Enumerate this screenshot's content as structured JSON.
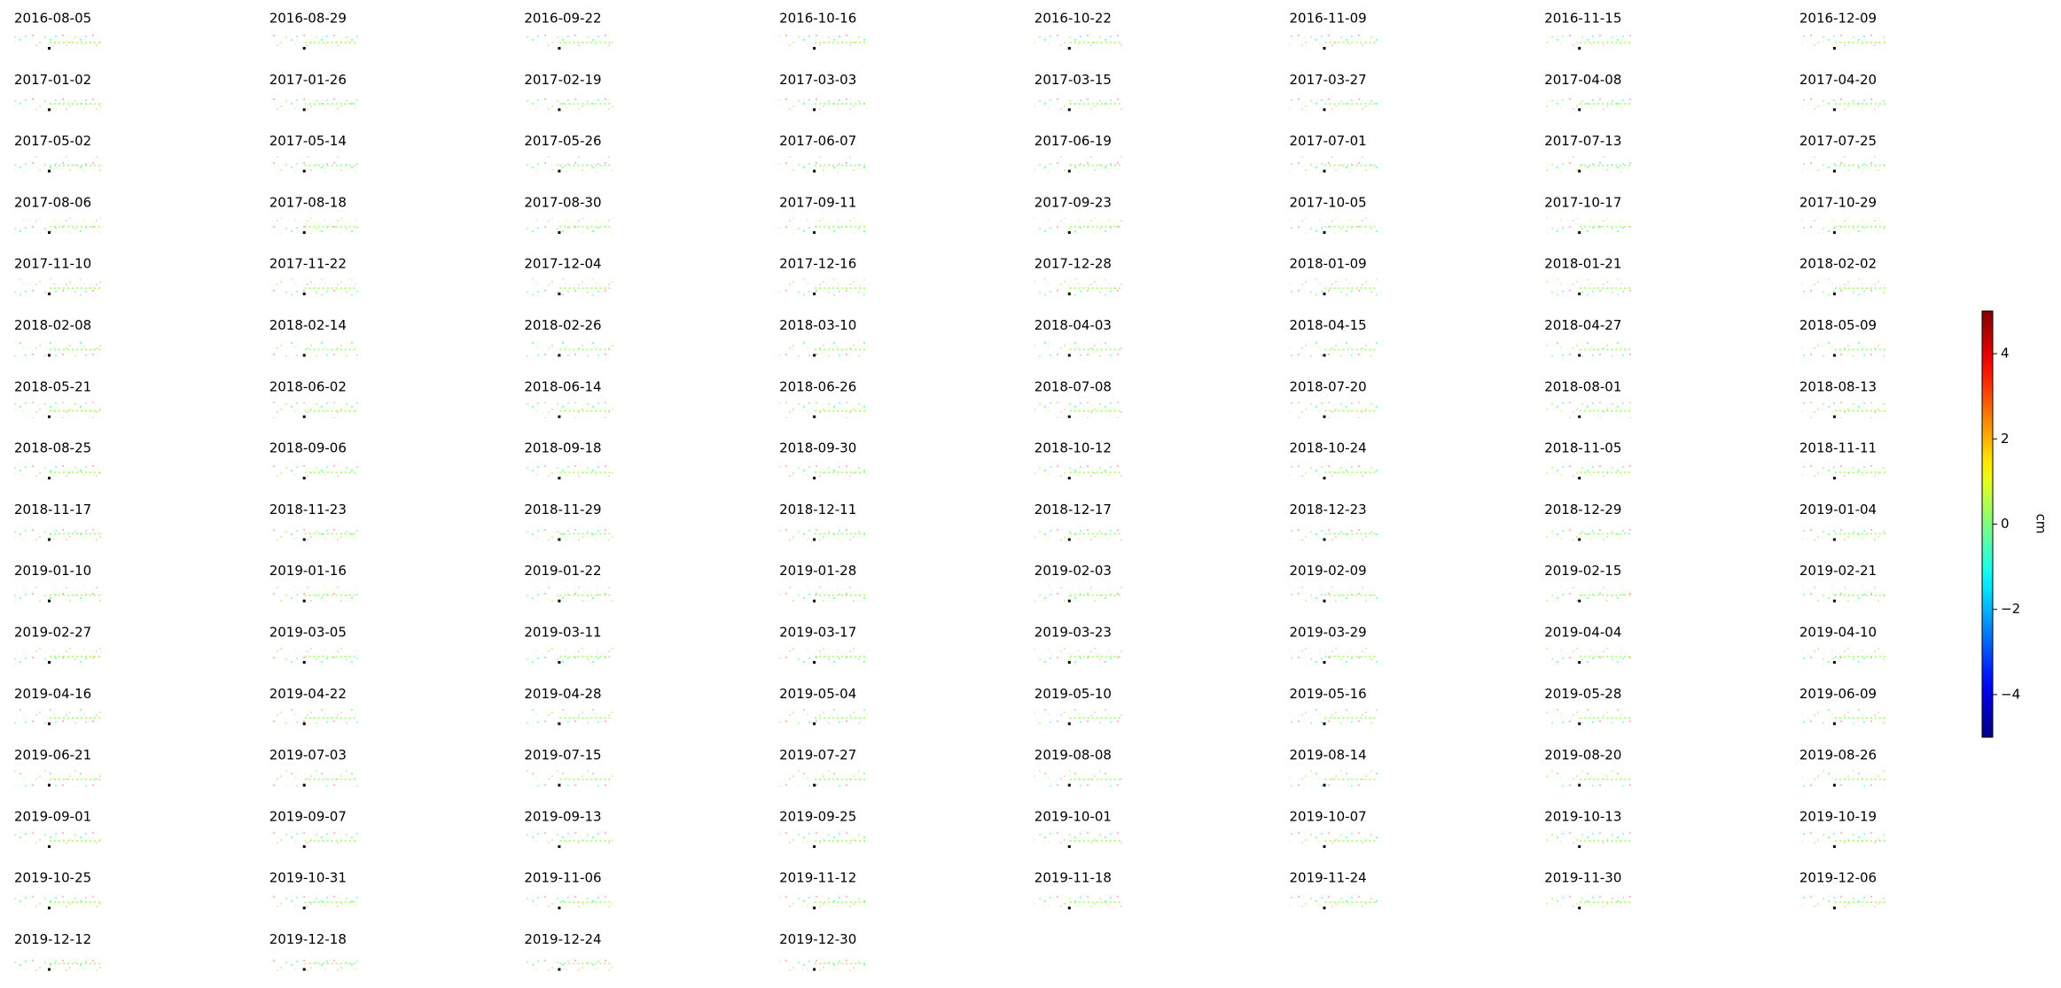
{
  "panels": [
    "2016-08-05",
    "2016-08-29",
    "2016-09-22",
    "2016-10-16",
    "2016-10-22",
    "2016-11-09",
    "2016-11-15",
    "2016-12-09",
    "2017-01-02",
    "2017-01-26",
    "2017-02-19",
    "2017-03-03",
    "2017-03-15",
    "2017-03-27",
    "2017-04-08",
    "2017-04-20",
    "2017-05-02",
    "2017-05-14",
    "2017-05-26",
    "2017-06-07",
    "2017-06-19",
    "2017-07-01",
    "2017-07-13",
    "2017-07-25",
    "2017-08-06",
    "2017-08-18",
    "2017-08-30",
    "2017-09-11",
    "2017-09-23",
    "2017-10-05",
    "2017-10-17",
    "2017-10-29",
    "2017-11-10",
    "2017-11-22",
    "2017-12-04",
    "2017-12-16",
    "2017-12-28",
    "2018-01-09",
    "2018-01-21",
    "2018-02-02",
    "2018-02-08",
    "2018-02-14",
    "2018-02-26",
    "2018-03-10",
    "2018-04-03",
    "2018-04-15",
    "2018-04-27",
    "2018-05-09",
    "2018-05-21",
    "2018-06-02",
    "2018-06-14",
    "2018-06-26",
    "2018-07-08",
    "2018-07-20",
    "2018-08-01",
    "2018-08-13",
    "2018-08-25",
    "2018-09-06",
    "2018-09-18",
    "2018-09-30",
    "2018-10-12",
    "2018-10-24",
    "2018-11-05",
    "2018-11-11",
    "2018-11-17",
    "2018-11-23",
    "2018-11-29",
    "2018-12-11",
    "2018-12-17",
    "2018-12-23",
    "2018-12-29",
    "2019-01-04",
    "2019-01-10",
    "2019-01-16",
    "2019-01-22",
    "2019-01-28",
    "2019-02-03",
    "2019-02-09",
    "2019-02-15",
    "2019-02-21",
    "2019-02-27",
    "2019-03-05",
    "2019-03-11",
    "2019-03-17",
    "2019-03-23",
    "2019-03-29",
    "2019-04-04",
    "2019-04-10",
    "2019-04-16",
    "2019-04-22",
    "2019-04-28",
    "2019-05-04",
    "2019-05-10",
    "2019-05-16",
    "2019-05-28",
    "2019-06-09",
    "2019-06-21",
    "2019-07-03",
    "2019-07-15",
    "2019-07-27",
    "2019-08-08",
    "2019-08-14",
    "2019-08-20",
    "2019-08-26",
    "2019-09-01",
    "2019-09-07",
    "2019-09-13",
    "2019-09-25",
    "2019-10-01",
    "2019-10-07",
    "2019-10-13",
    "2019-10-19",
    "2019-10-25",
    "2019-10-31",
    "2019-11-06",
    "2019-11-12",
    "2019-11-18",
    "2019-11-24",
    "2019-11-30",
    "2019-12-06",
    "2019-12-12",
    "2019-12-18",
    "2019-12-24",
    "2019-12-30"
  ],
  "colorbar": {
    "label": "cm",
    "colormap": "jet",
    "lim": [
      -5,
      5
    ],
    "ticks": [
      {
        "value": -4,
        "label": "−4"
      },
      {
        "value": -2,
        "label": "−2"
      },
      0,
      2,
      4
    ]
  }
}
